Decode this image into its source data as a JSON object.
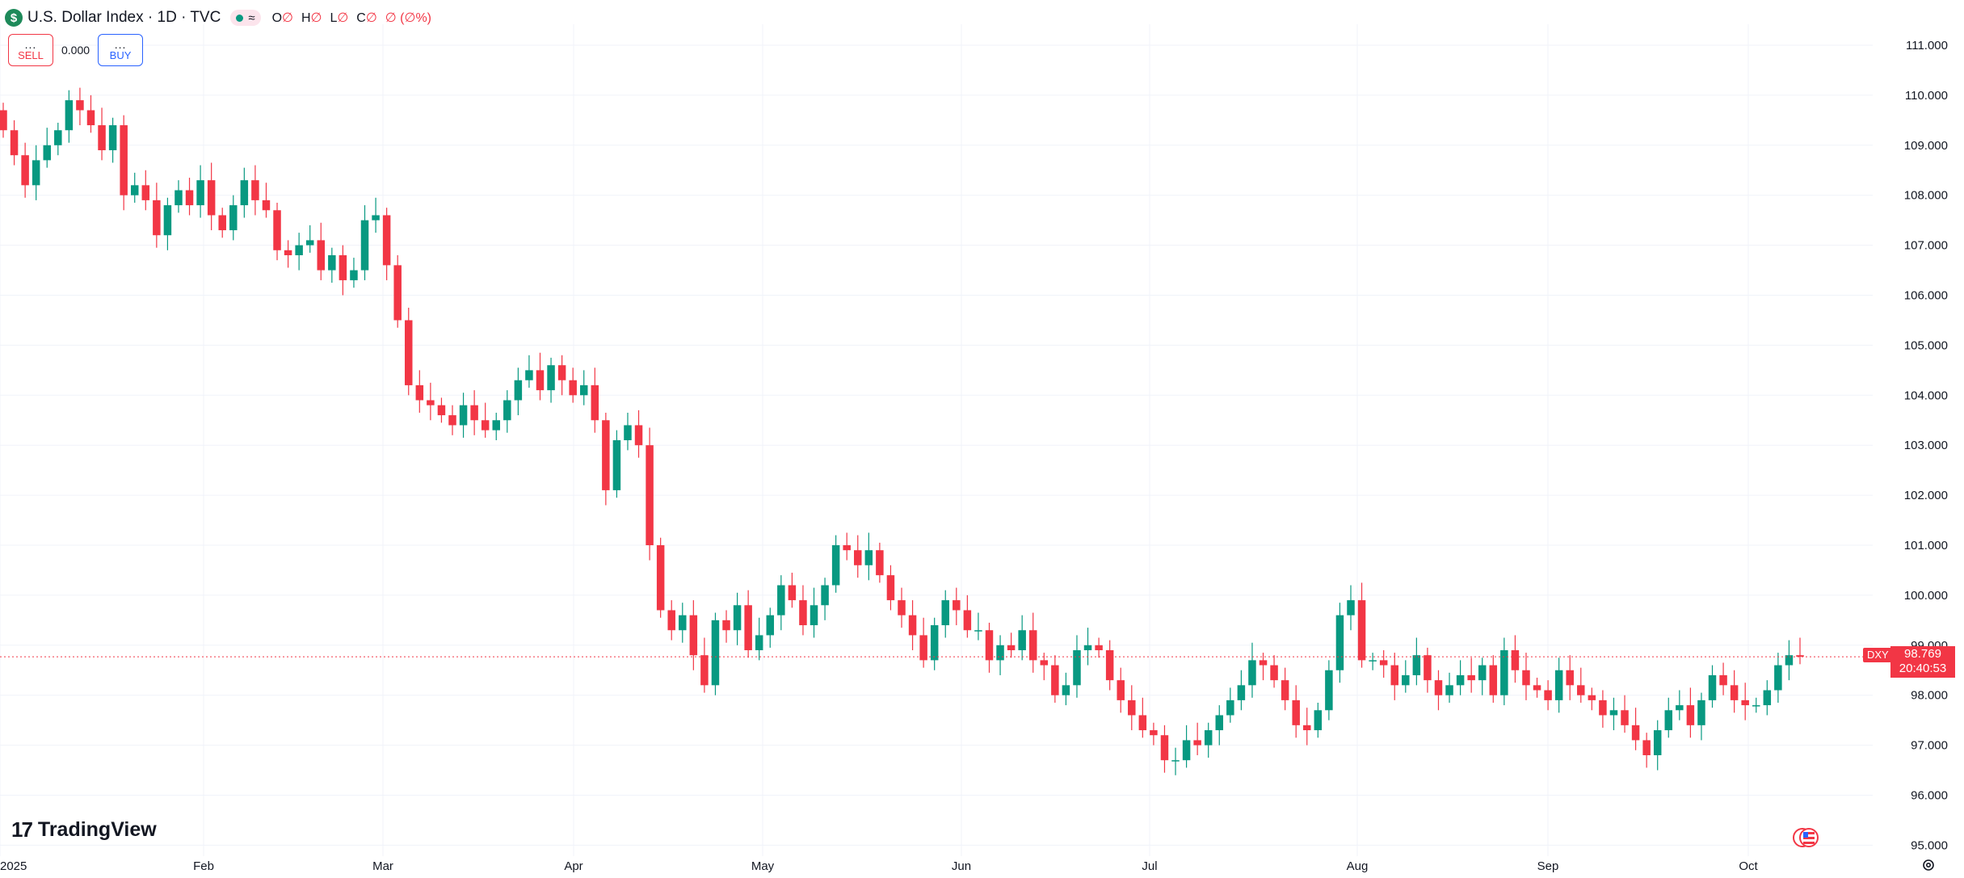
{
  "header": {
    "symbol_icon": "$",
    "title": "U.S. Dollar Index · 1D · TVC",
    "status_icon": "≈",
    "ohlc": [
      {
        "k": "O",
        "v": "∅"
      },
      {
        "k": "H",
        "v": "∅"
      },
      {
        "k": "L",
        "v": "∅"
      },
      {
        "k": "C",
        "v": "∅"
      },
      {
        "k": "",
        "v": "∅ (∅%)"
      }
    ]
  },
  "trade": {
    "dots": "...",
    "sell_label": "SELL",
    "buy_label": "BUY",
    "spread": "0.000"
  },
  "logo": {
    "mark": "17",
    "text": "TradingView"
  },
  "last_price": {
    "symbol": "DXY",
    "price": "98.769",
    "countdown": "20:40:53"
  },
  "colors": {
    "up": "#089981",
    "down": "#f23645",
    "grid": "#f0f3fa",
    "text": "#131722"
  },
  "chart_data": {
    "type": "candlestick",
    "y_ticks": [
      "111.000",
      "110.000",
      "109.000",
      "108.000",
      "107.000",
      "106.000",
      "105.000",
      "104.000",
      "103.000",
      "102.000",
      "101.000",
      "100.000",
      "99.000",
      "98.000",
      "97.000",
      "96.000",
      "95.000"
    ],
    "ylim": [
      95,
      111
    ],
    "x_labels": [
      "2025",
      "Feb",
      "Mar",
      "Apr",
      "May",
      "Jun",
      "Jul",
      "Aug",
      "Sep",
      "Oct"
    ],
    "closes": [
      109.3,
      108.8,
      108.2,
      108.7,
      109.0,
      109.3,
      109.9,
      109.7,
      109.4,
      108.9,
      109.4,
      108.0,
      108.2,
      107.9,
      107.2,
      107.8,
      108.1,
      107.8,
      108.3,
      107.6,
      107.3,
      107.8,
      108.3,
      107.9,
      107.7,
      106.9,
      106.8,
      107.0,
      107.1,
      106.5,
      106.8,
      106.3,
      106.5,
      107.5,
      107.6,
      106.6,
      105.5,
      104.2,
      103.9,
      103.8,
      103.6,
      103.4,
      103.8,
      103.5,
      103.3,
      103.5,
      103.9,
      104.3,
      104.5,
      104.1,
      104.6,
      104.3,
      104.0,
      104.2,
      103.5,
      102.1,
      103.1,
      103.4,
      103.0,
      101.0,
      99.7,
      99.3,
      99.6,
      98.8,
      98.2,
      99.5,
      99.3,
      99.8,
      98.9,
      99.2,
      99.6,
      100.2,
      99.9,
      99.4,
      99.8,
      100.2,
      101.0,
      100.9,
      100.6,
      100.9,
      100.4,
      99.9,
      99.6,
      99.2,
      98.7,
      99.4,
      99.9,
      99.7,
      99.3,
      99.3,
      98.7,
      99.0,
      98.9,
      99.3,
      98.7,
      98.6,
      98.0,
      98.2,
      98.9,
      99.0,
      98.9,
      98.3,
      97.9,
      97.6,
      97.3,
      97.2,
      96.7,
      96.7,
      97.1,
      97.0,
      97.3,
      97.6,
      97.9,
      98.2,
      98.7,
      98.6,
      98.3,
      97.9,
      97.4,
      97.3,
      97.7,
      98.5,
      99.6,
      99.9,
      98.7,
      98.7,
      98.6,
      98.2,
      98.4,
      98.8,
      98.3,
      98.0,
      98.2,
      98.4,
      98.3,
      98.6,
      98.0,
      98.9,
      98.5,
      98.2,
      98.1,
      97.9,
      98.5,
      98.2,
      98.0,
      97.9,
      97.6,
      97.7,
      97.4,
      97.1,
      96.8,
      97.3,
      97.7,
      97.8,
      97.4,
      97.9,
      98.4,
      98.2,
      97.9,
      97.8,
      97.8,
      98.1,
      98.6,
      98.8,
      98.77
    ],
    "series": [
      {
        "name": "DXY",
        "values": []
      }
    ]
  }
}
